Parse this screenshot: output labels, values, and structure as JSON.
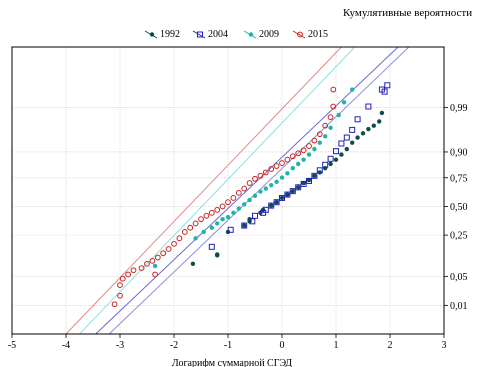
{
  "chart_data": {
    "type": "scatter",
    "title": "Кумулятивные вероятности",
    "xlabel": "Логарифм суммарной СГЭД",
    "ylabel": "",
    "xlim": [
      -5,
      3
    ],
    "x_ticks": [
      -5,
      -4,
      -3,
      -2,
      -1,
      0,
      1,
      2,
      3
    ],
    "y_scale": "normal-probability",
    "y_ticks": [
      0.01,
      0.05,
      0.25,
      0.5,
      0.75,
      0.9,
      0.99
    ],
    "y_tick_labels": [
      "0,01",
      "0,05",
      "0,25",
      "0,50",
      "0,75",
      "0,90",
      "0,99"
    ],
    "y_axis_side": "right",
    "grid": true,
    "legend_position": "top",
    "series": [
      {
        "name": "1992",
        "color": "#0e4d4d",
        "marker": "filled-circle",
        "fit_line_color": "#8f8fd8",
        "fit_line": [
          [
            -3.2,
            -3.0
          ],
          [
            2.35,
            3.75
          ]
        ],
        "points": [
          [
            -1.65,
            -1.35
          ],
          [
            -1.2,
            -1.13
          ],
          [
            -1.2,
            -1.15
          ],
          [
            -1.0,
            -0.6
          ],
          [
            -0.7,
            -0.45
          ],
          [
            -0.6,
            -0.3
          ],
          [
            -0.6,
            -0.35
          ],
          [
            -0.4,
            -0.15
          ],
          [
            -0.35,
            -0.08
          ],
          [
            -0.2,
            0.02
          ],
          [
            -0.1,
            0.1
          ],
          [
            0.0,
            0.2
          ],
          [
            0.1,
            0.28
          ],
          [
            0.2,
            0.36
          ],
          [
            0.3,
            0.45
          ],
          [
            0.4,
            0.55
          ],
          [
            0.5,
            0.62
          ],
          [
            0.6,
            0.72
          ],
          [
            0.7,
            0.8
          ],
          [
            0.8,
            0.9
          ],
          [
            0.9,
            1.0
          ],
          [
            1.0,
            1.1
          ],
          [
            1.1,
            1.22
          ],
          [
            1.2,
            1.35
          ],
          [
            1.3,
            1.5
          ],
          [
            1.4,
            1.62
          ],
          [
            1.5,
            1.72
          ],
          [
            1.6,
            1.82
          ],
          [
            1.7,
            1.9
          ],
          [
            1.8,
            2.0
          ],
          [
            1.85,
            2.2
          ]
        ]
      },
      {
        "name": "2004",
        "color": "#2222bb",
        "marker": "open-square",
        "fit_line_color": "#6b6bd0",
        "fit_line": [
          [
            -3.45,
            -3.0
          ],
          [
            2.15,
            3.75
          ]
        ],
        "points": [
          [
            -1.3,
            -0.95
          ],
          [
            -0.95,
            -0.55
          ],
          [
            -0.7,
            -0.45
          ],
          [
            -0.55,
            -0.35
          ],
          [
            -0.5,
            -0.22
          ],
          [
            -0.35,
            -0.15
          ],
          [
            -0.3,
            -0.08
          ],
          [
            -0.2,
            0.02
          ],
          [
            -0.1,
            0.1
          ],
          [
            0.0,
            0.2
          ],
          [
            0.1,
            0.28
          ],
          [
            0.2,
            0.36
          ],
          [
            0.3,
            0.45
          ],
          [
            0.4,
            0.53
          ],
          [
            0.5,
            0.6
          ],
          [
            0.6,
            0.72
          ],
          [
            0.7,
            0.85
          ],
          [
            0.8,
            0.98
          ],
          [
            0.9,
            1.12
          ],
          [
            1.0,
            1.3
          ],
          [
            1.1,
            1.48
          ],
          [
            1.2,
            1.62
          ],
          [
            1.3,
            1.8
          ],
          [
            1.4,
            2.05
          ],
          [
            1.6,
            2.35
          ],
          [
            1.85,
            2.75
          ],
          [
            1.95,
            2.85
          ],
          [
            1.9,
            2.7
          ]
        ]
      },
      {
        "name": "2009",
        "color": "#1eb5a8",
        "marker": "filled-circle",
        "fit_line_color": "#8fe0e0",
        "fit_line": [
          [
            -3.75,
            -3.0
          ],
          [
            1.35,
            3.75
          ]
        ],
        "points": [
          [
            -2.35,
            -1.4
          ],
          [
            -1.6,
            -0.75
          ],
          [
            -1.45,
            -0.6
          ],
          [
            -1.3,
            -0.5
          ],
          [
            -1.2,
            -0.4
          ],
          [
            -1.1,
            -0.3
          ],
          [
            -1.0,
            -0.25
          ],
          [
            -0.9,
            -0.15
          ],
          [
            -0.8,
            -0.05
          ],
          [
            -0.7,
            0.05
          ],
          [
            -0.6,
            0.15
          ],
          [
            -0.5,
            0.25
          ],
          [
            -0.4,
            0.35
          ],
          [
            -0.3,
            0.42
          ],
          [
            -0.2,
            0.5
          ],
          [
            -0.1,
            0.58
          ],
          [
            0.0,
            0.68
          ],
          [
            0.1,
            0.78
          ],
          [
            0.2,
            0.9
          ],
          [
            0.3,
            1.0
          ],
          [
            0.4,
            1.1
          ],
          [
            0.5,
            1.22
          ],
          [
            0.6,
            1.35
          ],
          [
            0.7,
            1.5
          ],
          [
            0.8,
            1.65
          ],
          [
            0.9,
            1.85
          ],
          [
            1.05,
            2.15
          ],
          [
            1.15,
            2.45
          ],
          [
            1.3,
            2.75
          ]
        ]
      },
      {
        "name": "2015",
        "color": "#cc2222",
        "marker": "open-circle",
        "fit_line_color": "#e08a8a",
        "fit_line": [
          [
            -4.0,
            -3.0
          ],
          [
            1.1,
            3.75
          ]
        ],
        "points": [
          [
            -3.0,
            -1.85
          ],
          [
            -2.95,
            -1.7
          ],
          [
            -2.85,
            -1.6
          ],
          [
            -2.75,
            -1.5
          ],
          [
            -2.6,
            -1.45
          ],
          [
            -2.5,
            -1.35
          ],
          [
            -2.4,
            -1.28
          ],
          [
            -2.3,
            -1.2
          ],
          [
            -2.2,
            -1.1
          ],
          [
            -2.1,
            -1.0
          ],
          [
            -2.0,
            -0.88
          ],
          [
            -1.9,
            -0.75
          ],
          [
            -1.8,
            -0.6
          ],
          [
            -1.7,
            -0.5
          ],
          [
            -1.6,
            -0.4
          ],
          [
            -1.5,
            -0.3
          ],
          [
            -1.4,
            -0.22
          ],
          [
            -1.3,
            -0.15
          ],
          [
            -1.2,
            -0.08
          ],
          [
            -1.1,
            0.0
          ],
          [
            -1.0,
            0.1
          ],
          [
            -0.9,
            0.2
          ],
          [
            -0.8,
            0.32
          ],
          [
            -0.7,
            0.42
          ],
          [
            -0.6,
            0.55
          ],
          [
            -0.5,
            0.65
          ],
          [
            -0.4,
            0.72
          ],
          [
            -0.3,
            0.8
          ],
          [
            -0.2,
            0.88
          ],
          [
            -0.1,
            0.95
          ],
          [
            0.0,
            1.02
          ],
          [
            0.1,
            1.1
          ],
          [
            0.2,
            1.18
          ],
          [
            0.3,
            1.25
          ],
          [
            0.4,
            1.32
          ],
          [
            0.5,
            1.42
          ],
          [
            0.6,
            1.55
          ],
          [
            0.7,
            1.7
          ],
          [
            0.8,
            1.9
          ],
          [
            0.9,
            2.1
          ],
          [
            0.95,
            2.35
          ],
          [
            0.95,
            2.75
          ],
          [
            -3.1,
            -2.3
          ],
          [
            -3.0,
            -2.1
          ],
          [
            -2.35,
            -1.6
          ]
        ]
      }
    ]
  }
}
